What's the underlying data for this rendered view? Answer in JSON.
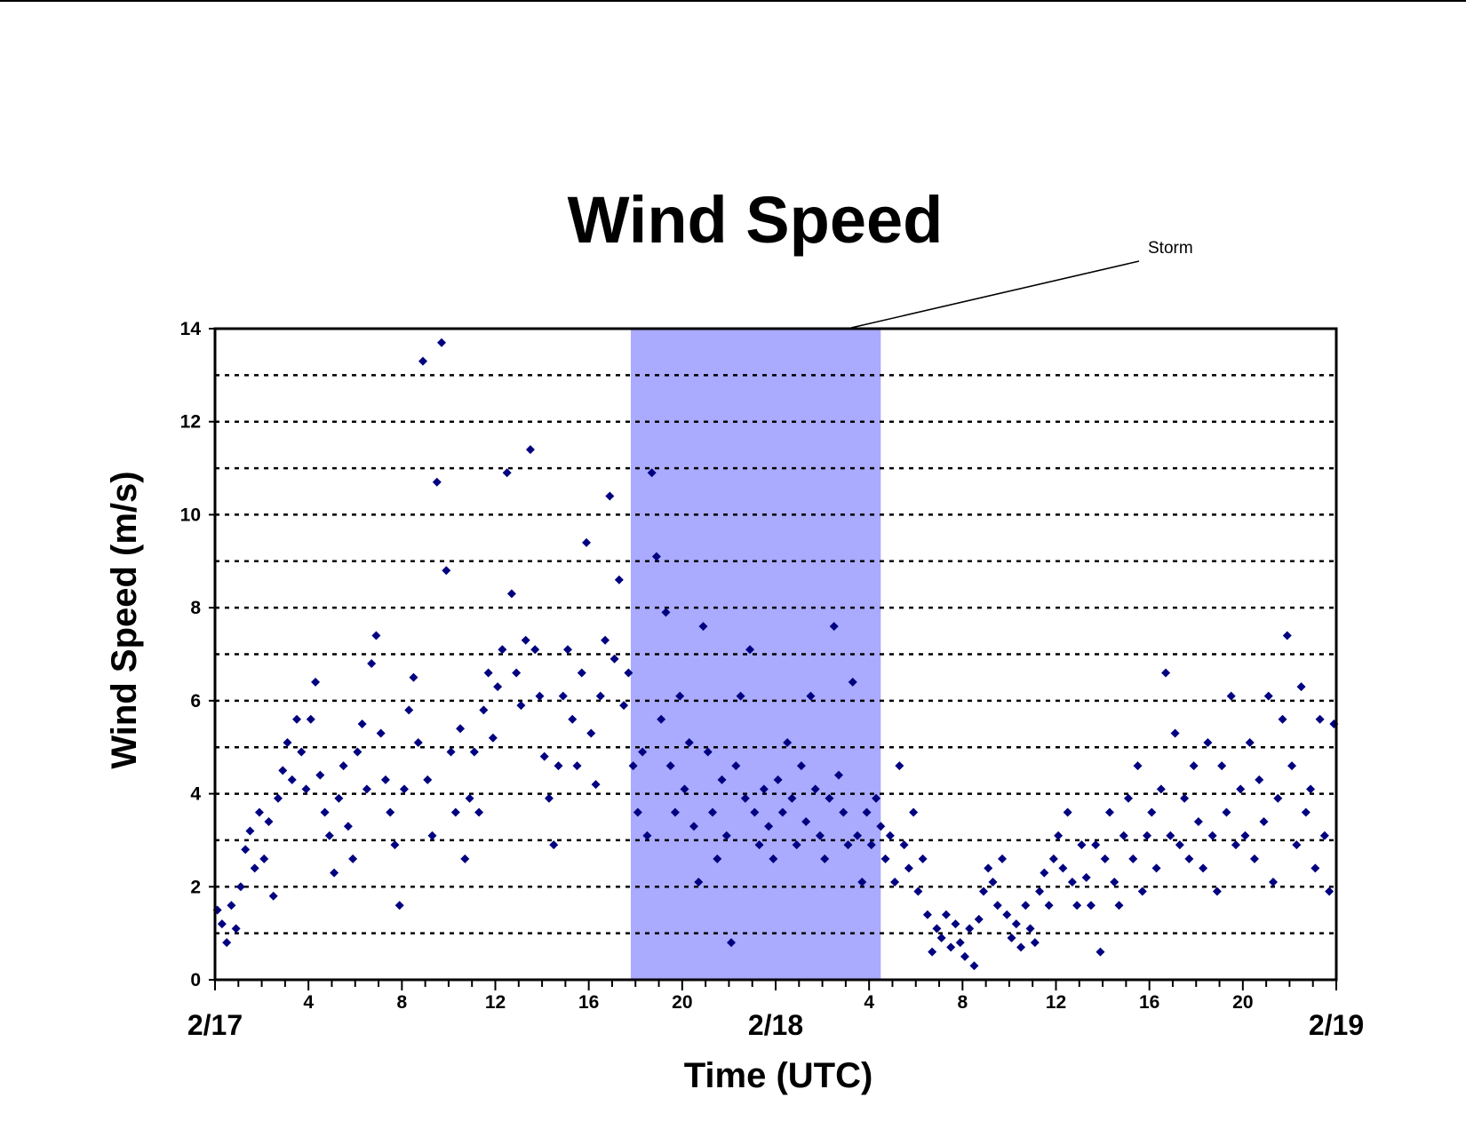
{
  "chart_data": {
    "type": "scatter",
    "title": "Wind Speed",
    "xlabel": "Time (UTC)",
    "ylabel": "Wind Speed (m/s)",
    "x_unit": "hours since 2/17 00 UTC",
    "xlim": [
      0,
      48
    ],
    "ylim": [
      0,
      14
    ],
    "y_ticks": [
      0,
      2,
      4,
      6,
      8,
      10,
      12,
      14
    ],
    "y_gridlines": [
      1,
      2,
      3,
      4,
      5,
      6,
      7,
      8,
      9,
      10,
      11,
      12,
      13
    ],
    "grid": "dashed horizontal lines",
    "x_hour_labels": [
      {
        "x": 4,
        "label": "4"
      },
      {
        "x": 8,
        "label": "8"
      },
      {
        "x": 12,
        "label": "12"
      },
      {
        "x": 16,
        "label": "16"
      },
      {
        "x": 20,
        "label": "20"
      },
      {
        "x": 28,
        "label": "4"
      },
      {
        "x": 32,
        "label": "8"
      },
      {
        "x": 36,
        "label": "12"
      },
      {
        "x": 40,
        "label": "16"
      },
      {
        "x": 44,
        "label": "20"
      }
    ],
    "x_date_labels": [
      {
        "x": 0,
        "label": "2/17"
      },
      {
        "x": 24,
        "label": "2/18"
      },
      {
        "x": 48,
        "label": "2/19"
      }
    ],
    "annotation": {
      "text": "Storm",
      "x_start": 17.8,
      "x_end": 28.5
    },
    "series": [
      {
        "marker": "diamond",
        "color": "#000080",
        "points": [
          [
            0.1,
            1.5
          ],
          [
            0.3,
            1.2
          ],
          [
            0.5,
            0.8
          ],
          [
            0.7,
            1.6
          ],
          [
            0.9,
            1.1
          ],
          [
            1.1,
            2.0
          ],
          [
            1.3,
            2.8
          ],
          [
            1.5,
            3.2
          ],
          [
            1.7,
            2.4
          ],
          [
            1.9,
            3.6
          ],
          [
            2.1,
            2.6
          ],
          [
            2.3,
            3.4
          ],
          [
            2.5,
            1.8
          ],
          [
            2.7,
            3.9
          ],
          [
            2.9,
            4.5
          ],
          [
            3.1,
            5.1
          ],
          [
            3.3,
            4.3
          ],
          [
            3.5,
            5.6
          ],
          [
            3.7,
            4.9
          ],
          [
            3.9,
            4.1
          ],
          [
            4.1,
            5.6
          ],
          [
            4.3,
            6.4
          ],
          [
            4.5,
            4.4
          ],
          [
            4.7,
            3.6
          ],
          [
            4.9,
            3.1
          ],
          [
            5.1,
            2.3
          ],
          [
            5.3,
            3.9
          ],
          [
            5.5,
            4.6
          ],
          [
            5.7,
            3.3
          ],
          [
            5.9,
            2.6
          ],
          [
            6.1,
            4.9
          ],
          [
            6.3,
            5.5
          ],
          [
            6.5,
            4.1
          ],
          [
            6.7,
            6.8
          ],
          [
            6.9,
            7.4
          ],
          [
            7.1,
            5.3
          ],
          [
            7.3,
            4.3
          ],
          [
            7.5,
            3.6
          ],
          [
            7.7,
            2.9
          ],
          [
            7.9,
            1.6
          ],
          [
            8.1,
            4.1
          ],
          [
            8.3,
            5.8
          ],
          [
            8.5,
            6.5
          ],
          [
            8.7,
            5.1
          ],
          [
            8.9,
            13.3
          ],
          [
            9.1,
            4.3
          ],
          [
            9.3,
            3.1
          ],
          [
            9.5,
            10.7
          ],
          [
            9.7,
            13.7
          ],
          [
            9.9,
            8.8
          ],
          [
            10.1,
            4.9
          ],
          [
            10.3,
            3.6
          ],
          [
            10.5,
            5.4
          ],
          [
            10.7,
            2.6
          ],
          [
            10.9,
            3.9
          ],
          [
            11.1,
            4.9
          ],
          [
            11.3,
            3.6
          ],
          [
            11.5,
            5.8
          ],
          [
            11.7,
            6.6
          ],
          [
            11.9,
            5.2
          ],
          [
            12.1,
            6.3
          ],
          [
            12.3,
            7.1
          ],
          [
            12.5,
            10.9
          ],
          [
            12.7,
            8.3
          ],
          [
            12.9,
            6.6
          ],
          [
            13.1,
            5.9
          ],
          [
            13.3,
            7.3
          ],
          [
            13.5,
            11.4
          ],
          [
            13.7,
            7.1
          ],
          [
            13.9,
            6.1
          ],
          [
            14.1,
            4.8
          ],
          [
            14.3,
            3.9
          ],
          [
            14.5,
            2.9
          ],
          [
            14.7,
            4.6
          ],
          [
            14.9,
            6.1
          ],
          [
            15.1,
            7.1
          ],
          [
            15.3,
            5.6
          ],
          [
            15.5,
            4.6
          ],
          [
            15.7,
            6.6
          ],
          [
            15.9,
            9.4
          ],
          [
            16.1,
            5.3
          ],
          [
            16.3,
            4.2
          ],
          [
            16.5,
            6.1
          ],
          [
            16.7,
            7.3
          ],
          [
            16.9,
            10.4
          ],
          [
            17.1,
            6.9
          ],
          [
            17.3,
            8.6
          ],
          [
            17.5,
            5.9
          ],
          [
            17.7,
            6.6
          ],
          [
            17.9,
            4.6
          ],
          [
            18.1,
            3.6
          ],
          [
            18.3,
            4.9
          ],
          [
            18.5,
            3.1
          ],
          [
            18.7,
            10.9
          ],
          [
            18.9,
            9.1
          ],
          [
            19.1,
            5.6
          ],
          [
            19.3,
            7.9
          ],
          [
            19.5,
            4.6
          ],
          [
            19.7,
            3.6
          ],
          [
            19.9,
            6.1
          ],
          [
            20.1,
            4.1
          ],
          [
            20.3,
            5.1
          ],
          [
            20.5,
            3.3
          ],
          [
            20.7,
            2.1
          ],
          [
            20.9,
            7.6
          ],
          [
            21.1,
            4.9
          ],
          [
            21.3,
            3.6
          ],
          [
            21.5,
            2.6
          ],
          [
            21.7,
            4.3
          ],
          [
            21.9,
            3.1
          ],
          [
            22.1,
            0.8
          ],
          [
            22.3,
            4.6
          ],
          [
            22.5,
            6.1
          ],
          [
            22.7,
            3.9
          ],
          [
            22.9,
            7.1
          ],
          [
            23.1,
            3.6
          ],
          [
            23.3,
            2.9
          ],
          [
            23.5,
            4.1
          ],
          [
            23.7,
            3.3
          ],
          [
            23.9,
            2.6
          ],
          [
            24.1,
            4.3
          ],
          [
            24.3,
            3.6
          ],
          [
            24.5,
            5.1
          ],
          [
            24.7,
            3.9
          ],
          [
            24.9,
            2.9
          ],
          [
            25.1,
            4.6
          ],
          [
            25.3,
            3.4
          ],
          [
            25.5,
            6.1
          ],
          [
            25.7,
            4.1
          ],
          [
            25.9,
            3.1
          ],
          [
            26.1,
            2.6
          ],
          [
            26.3,
            3.9
          ],
          [
            26.5,
            7.6
          ],
          [
            26.7,
            4.4
          ],
          [
            26.9,
            3.6
          ],
          [
            27.1,
            2.9
          ],
          [
            27.3,
            6.4
          ],
          [
            27.5,
            3.1
          ],
          [
            27.7,
            2.1
          ],
          [
            27.9,
            3.6
          ],
          [
            28.1,
            2.9
          ],
          [
            28.3,
            3.9
          ],
          [
            28.5,
            3.3
          ],
          [
            28.7,
            2.6
          ],
          [
            28.9,
            3.1
          ],
          [
            29.1,
            2.1
          ],
          [
            29.3,
            4.6
          ],
          [
            29.5,
            2.9
          ],
          [
            29.7,
            2.4
          ],
          [
            29.9,
            3.6
          ],
          [
            30.1,
            1.9
          ],
          [
            30.3,
            2.6
          ],
          [
            30.5,
            1.4
          ],
          [
            30.7,
            0.6
          ],
          [
            30.9,
            1.1
          ],
          [
            31.1,
            0.9
          ],
          [
            31.3,
            1.4
          ],
          [
            31.5,
            0.7
          ],
          [
            31.7,
            1.2
          ],
          [
            31.9,
            0.8
          ],
          [
            32.1,
            0.5
          ],
          [
            32.3,
            1.1
          ],
          [
            32.5,
            0.3
          ],
          [
            32.7,
            1.3
          ],
          [
            32.9,
            1.9
          ],
          [
            33.1,
            2.4
          ],
          [
            33.3,
            2.1
          ],
          [
            33.5,
            1.6
          ],
          [
            33.7,
            2.6
          ],
          [
            33.9,
            1.4
          ],
          [
            34.1,
            0.9
          ],
          [
            34.3,
            1.2
          ],
          [
            34.5,
            0.7
          ],
          [
            34.7,
            1.6
          ],
          [
            34.9,
            1.1
          ],
          [
            35.1,
            0.8
          ],
          [
            35.3,
            1.9
          ],
          [
            35.5,
            2.3
          ],
          [
            35.7,
            1.6
          ],
          [
            35.9,
            2.6
          ],
          [
            36.1,
            3.1
          ],
          [
            36.3,
            2.4
          ],
          [
            36.5,
            3.6
          ],
          [
            36.7,
            2.1
          ],
          [
            36.9,
            1.6
          ],
          [
            37.1,
            2.9
          ],
          [
            37.3,
            2.2
          ],
          [
            37.5,
            1.6
          ],
          [
            37.7,
            2.9
          ],
          [
            37.9,
            0.6
          ],
          [
            38.1,
            2.6
          ],
          [
            38.3,
            3.6
          ],
          [
            38.5,
            2.1
          ],
          [
            38.7,
            1.6
          ],
          [
            38.9,
            3.1
          ],
          [
            39.1,
            3.9
          ],
          [
            39.3,
            2.6
          ],
          [
            39.5,
            4.6
          ],
          [
            39.7,
            1.9
          ],
          [
            39.9,
            3.1
          ],
          [
            40.1,
            3.6
          ],
          [
            40.3,
            2.4
          ],
          [
            40.5,
            4.1
          ],
          [
            40.7,
            6.6
          ],
          [
            40.9,
            3.1
          ],
          [
            41.1,
            5.3
          ],
          [
            41.3,
            2.9
          ],
          [
            41.5,
            3.9
          ],
          [
            41.7,
            2.6
          ],
          [
            41.9,
            4.6
          ],
          [
            42.1,
            3.4
          ],
          [
            42.3,
            2.4
          ],
          [
            42.5,
            5.1
          ],
          [
            42.7,
            3.1
          ],
          [
            42.9,
            1.9
          ],
          [
            43.1,
            4.6
          ],
          [
            43.3,
            3.6
          ],
          [
            43.5,
            6.1
          ],
          [
            43.7,
            2.9
          ],
          [
            43.9,
            4.1
          ],
          [
            44.1,
            3.1
          ],
          [
            44.3,
            5.1
          ],
          [
            44.5,
            2.6
          ],
          [
            44.7,
            4.3
          ],
          [
            44.9,
            3.4
          ],
          [
            45.1,
            6.1
          ],
          [
            45.3,
            2.1
          ],
          [
            45.5,
            3.9
          ],
          [
            45.7,
            5.6
          ],
          [
            45.9,
            7.4
          ],
          [
            46.1,
            4.6
          ],
          [
            46.3,
            2.9
          ],
          [
            46.5,
            6.3
          ],
          [
            46.7,
            3.6
          ],
          [
            46.9,
            4.1
          ],
          [
            47.1,
            2.4
          ],
          [
            47.3,
            5.6
          ],
          [
            47.5,
            3.1
          ],
          [
            47.7,
            1.9
          ],
          [
            47.9,
            5.5
          ]
        ]
      }
    ]
  }
}
